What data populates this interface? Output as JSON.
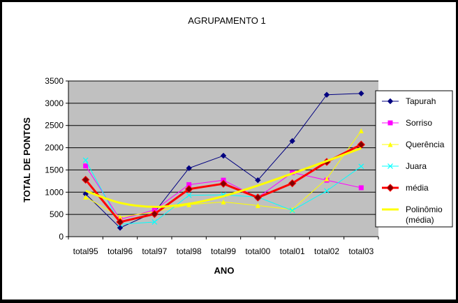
{
  "chart_data": {
    "type": "line",
    "title": "AGRUPAMENTO 1",
    "xlabel": "ANO",
    "ylabel": "TOTAL DE PONTOS",
    "ylim": [
      0,
      3500
    ],
    "ytick_step": 500,
    "grid": "horizontal",
    "legend_position": "right",
    "categories": [
      "total95",
      "total96",
      "total97",
      "total98",
      "total99",
      "total00",
      "total01",
      "total02",
      "total03"
    ],
    "series": [
      {
        "name": "Tapurah",
        "color": "#000080",
        "marker": "diamond",
        "stroke": 1,
        "values": [
          960,
          200,
          550,
          1540,
          1820,
          1270,
          2150,
          3190,
          3220
        ]
      },
      {
        "name": "Sorriso",
        "color": "#FF00FF",
        "marker": "square",
        "stroke": 1,
        "values": [
          1590,
          390,
          600,
          1170,
          1270,
          880,
          1440,
          1270,
          1100
        ]
      },
      {
        "name": "Querência",
        "color": "#FFFF00",
        "marker": "triangle",
        "stroke": 1,
        "values": [
          890,
          440,
          560,
          720,
          780,
          700,
          610,
          1300,
          2380
        ]
      },
      {
        "name": "Juara",
        "color": "#00FFFF",
        "marker": "x",
        "stroke": 1,
        "values": [
          1720,
          280,
          330,
          930,
          940,
          890,
          590,
          1030,
          1580
        ]
      },
      {
        "name": "média",
        "color": "#FF0000",
        "marker": "diamond",
        "stroke": 3,
        "marker_fill": "#800000",
        "values": [
          1280,
          330,
          510,
          1070,
          1190,
          880,
          1200,
          1680,
          2070
        ]
      },
      {
        "name": "Polinômio (média)",
        "color": "#FFFF00",
        "marker": "none",
        "stroke": 3,
        "smooth": true,
        "values": [
          1030,
          760,
          670,
          740,
          910,
          1150,
          1420,
          1700,
          1990
        ]
      }
    ]
  }
}
